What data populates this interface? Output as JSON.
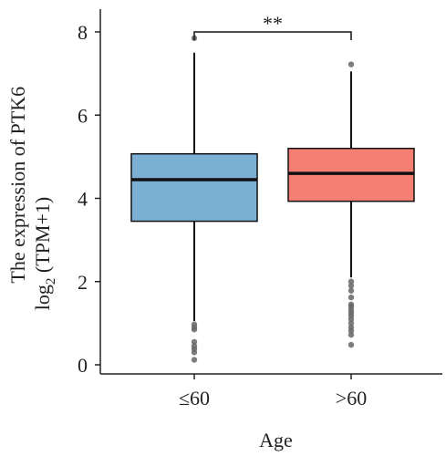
{
  "chart_data": {
    "type": "box",
    "title": "",
    "xlabel": "Age",
    "ylabel_lines": [
      "The expression of PTK6",
      "log",
      "2",
      " (TPM+1)"
    ],
    "ylim": [
      0,
      8
    ],
    "yticks": [
      0,
      2,
      4,
      6,
      8
    ],
    "categories": [
      "≤60",
      ">60"
    ],
    "boxes": [
      {
        "category": "≤60",
        "color": "#7BAFD4",
        "min": 1.05,
        "q1": 3.45,
        "median": 4.45,
        "q3": 5.07,
        "max": 7.5,
        "outliers": [
          7.85,
          0.97,
          0.9,
          0.85,
          0.55,
          0.45,
          0.38,
          0.3,
          0.12
        ]
      },
      {
        "category": ">60",
        "color": "#F47F72",
        "min": 2.1,
        "q1": 3.93,
        "median": 4.6,
        "q3": 5.2,
        "max": 7.05,
        "outliers": [
          7.22,
          2.0,
          1.9,
          1.78,
          1.62,
          1.45,
          1.4,
          1.32,
          1.25,
          1.18,
          1.1,
          1.0,
          0.9,
          0.82,
          0.72,
          0.48
        ]
      }
    ],
    "significance": {
      "label": "**",
      "between": [
        "≤60",
        ">60"
      ],
      "y": 8.0
    },
    "grid": false,
    "legend": "none"
  }
}
